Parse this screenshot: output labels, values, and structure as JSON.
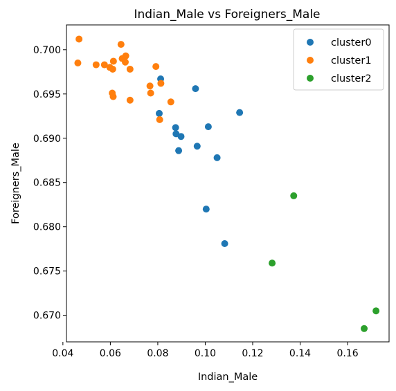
{
  "chart_data": {
    "type": "scatter",
    "title": "Indian_Male vs Foreigners_Male",
    "xlabel": "Indian_Male",
    "ylabel": "Foreigners_Male",
    "xlim": [
      0.0415,
      0.1775
    ],
    "ylim": [
      0.667,
      0.7028
    ],
    "xticks": [
      "0.04",
      "0.06",
      "0.08",
      "0.10",
      "0.12",
      "0.14",
      "0.16"
    ],
    "xtick_values": [
      0.04,
      0.06,
      0.08,
      0.1,
      0.12,
      0.14,
      0.16
    ],
    "yticks": [
      "0.670",
      "0.675",
      "0.680",
      "0.685",
      "0.690",
      "0.695",
      "0.700"
    ],
    "ytick_values": [
      0.67,
      0.675,
      0.68,
      0.685,
      0.69,
      0.695,
      0.7
    ],
    "grid": false,
    "legend_position": "top-right",
    "series": [
      {
        "name": "cluster0",
        "color": "#1f77b4",
        "points": [
          [
            0.0812,
            0.6967
          ],
          [
            0.0959,
            0.6956
          ],
          [
            0.1145,
            0.6929
          ],
          [
            0.0806,
            0.6928
          ],
          [
            0.1013,
            0.6913
          ],
          [
            0.0875,
            0.6912
          ],
          [
            0.0877,
            0.6905
          ],
          [
            0.0898,
            0.6902
          ],
          [
            0.0966,
            0.6891
          ],
          [
            0.0888,
            0.6886
          ],
          [
            0.105,
            0.6878
          ],
          [
            0.1004,
            0.682
          ],
          [
            0.1082,
            0.6781
          ]
        ]
      },
      {
        "name": "cluster1",
        "color": "#ff7f0e",
        "points": [
          [
            0.0468,
            0.7012
          ],
          [
            0.0645,
            0.7006
          ],
          [
            0.0665,
            0.6993
          ],
          [
            0.065,
            0.699
          ],
          [
            0.0613,
            0.6987
          ],
          [
            0.0663,
            0.6986
          ],
          [
            0.0463,
            0.6985
          ],
          [
            0.054,
            0.6983
          ],
          [
            0.0575,
            0.6983
          ],
          [
            0.0598,
            0.698
          ],
          [
            0.0792,
            0.6981
          ],
          [
            0.061,
            0.6978
          ],
          [
            0.0683,
            0.6978
          ],
          [
            0.0813,
            0.6962
          ],
          [
            0.0767,
            0.6959
          ],
          [
            0.0608,
            0.6951
          ],
          [
            0.077,
            0.6951
          ],
          [
            0.0612,
            0.6947
          ],
          [
            0.0683,
            0.6943
          ],
          [
            0.0855,
            0.6941
          ],
          [
            0.0808,
            0.6921
          ]
        ]
      },
      {
        "name": "cluster2",
        "color": "#2ca02c",
        "points": [
          [
            0.1373,
            0.6835
          ],
          [
            0.1282,
            0.6759
          ],
          [
            0.172,
            0.6705
          ],
          [
            0.167,
            0.6685
          ]
        ]
      }
    ]
  }
}
